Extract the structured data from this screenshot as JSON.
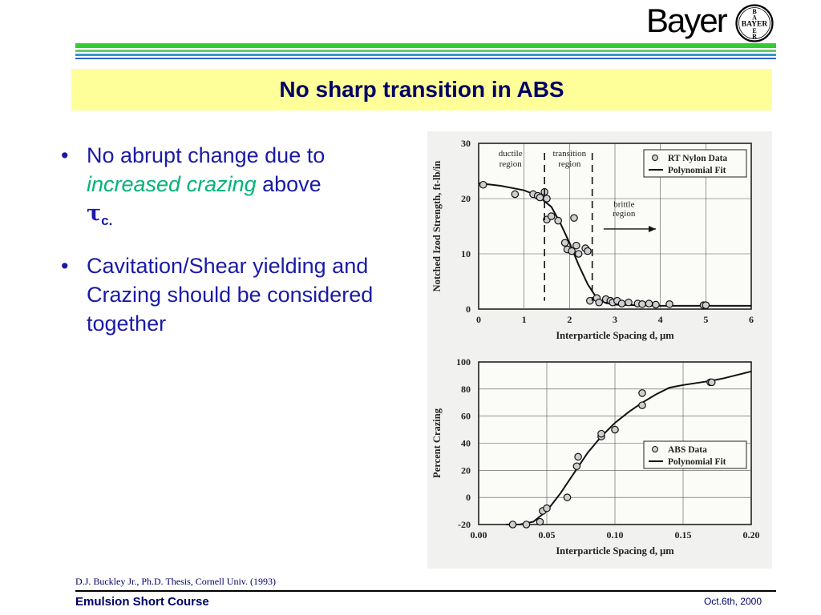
{
  "brand": {
    "name": "Bayer",
    "cross_text_h": "BAYER",
    "cross_text_v": "BAYER"
  },
  "colors": {
    "title_bg": "#ffff99",
    "title_text": "#000066",
    "bullet_text": "#1a1aa6",
    "emphasis": "#00b377",
    "stripe_green": "#33cc33",
    "stripe_blue": "#3366cc"
  },
  "slide": {
    "title": "No sharp transition in ABS",
    "bullets": [
      {
        "pre": "No abrupt change due to ",
        "emph": "increased crazing",
        "post": " above",
        "symbol": "τ",
        "symbol_sub": "c",
        "end": "."
      },
      {
        "text": "Cavitation/Shear yielding and Crazing should be considered together"
      }
    ]
  },
  "chart_data": [
    {
      "type": "scatter",
      "ylabel": "Notched Izod Strength, ft-lb/in",
      "xlabel": "Interparticle Spacing d, μm",
      "xlim": [
        0,
        6
      ],
      "ylim": [
        0,
        30
      ],
      "xticks": [
        "0",
        "1",
        "2",
        "3",
        "4",
        "5",
        "6"
      ],
      "yticks": [
        "0",
        "10",
        "20",
        "30"
      ],
      "grid": true,
      "legend": {
        "position": "top-right",
        "entries": [
          "RT Nylon Data",
          "Polynomial Fit"
        ]
      },
      "annotations": {
        "ductile": "ductile region",
        "transition": "transition region",
        "brittle": "brittle region"
      },
      "series": [
        {
          "name": "RT Nylon Data",
          "points": [
            [
              0.1,
              22.5
            ],
            [
              0.8,
              20.8
            ],
            [
              1.2,
              20.8
            ],
            [
              1.3,
              20.5
            ],
            [
              1.35,
              20.2
            ],
            [
              1.45,
              21.2
            ],
            [
              1.5,
              20.0
            ],
            [
              1.5,
              16.2
            ],
            [
              1.6,
              16.8
            ],
            [
              1.75,
              16.0
            ],
            [
              2.1,
              16.5
            ],
            [
              1.9,
              12.0
            ],
            [
              1.95,
              10.8
            ],
            [
              2.05,
              10.5
            ],
            [
              2.15,
              11.5
            ],
            [
              2.2,
              10.0
            ],
            [
              2.35,
              11.0
            ],
            [
              2.4,
              10.5
            ],
            [
              2.45,
              1.5
            ],
            [
              2.6,
              2.0
            ],
            [
              2.65,
              1.2
            ],
            [
              2.8,
              1.8
            ],
            [
              2.9,
              1.5
            ],
            [
              2.95,
              1.2
            ],
            [
              3.05,
              1.5
            ],
            [
              3.15,
              1.0
            ],
            [
              3.3,
              1.2
            ],
            [
              3.5,
              1.0
            ],
            [
              3.6,
              0.9
            ],
            [
              3.75,
              1.0
            ],
            [
              3.9,
              0.8
            ],
            [
              4.2,
              0.9
            ],
            [
              4.95,
              0.7
            ],
            [
              5.0,
              0.7
            ]
          ]
        },
        {
          "name": "Polynomial Fit",
          "points": [
            [
              0,
              22.8
            ],
            [
              0.5,
              22.3
            ],
            [
              1.0,
              21.5
            ],
            [
              1.3,
              20.5
            ],
            [
              1.6,
              18.5
            ],
            [
              1.8,
              15.5
            ],
            [
              2.0,
              12.0
            ],
            [
              2.2,
              8.0
            ],
            [
              2.4,
              4.5
            ],
            [
              2.6,
              2.0
            ],
            [
              2.8,
              1.1
            ],
            [
              3.0,
              0.8
            ],
            [
              4.0,
              0.6
            ],
            [
              5.0,
              0.6
            ],
            [
              6.0,
              0.6
            ]
          ]
        }
      ]
    },
    {
      "type": "scatter",
      "ylabel": "Percent Crazing",
      "xlabel": "Interparticle Spacing d, μm",
      "xlim": [
        0.0,
        0.2
      ],
      "ylim": [
        -20,
        100
      ],
      "xticks": [
        "0.00",
        "0.05",
        "0.10",
        "0.15",
        "0.20"
      ],
      "yticks": [
        "-20",
        "0",
        "20",
        "40",
        "60",
        "80",
        "100"
      ],
      "grid": true,
      "legend": {
        "position": "bottom-right",
        "entries": [
          "ABS Data",
          "Polynomial Fit"
        ]
      },
      "series": [
        {
          "name": "ABS Data",
          "points": [
            [
              0.025,
              -20
            ],
            [
              0.035,
              -20
            ],
            [
              0.045,
              -18
            ],
            [
              0.047,
              -10
            ],
            [
              0.05,
              -8
            ],
            [
              0.065,
              0
            ],
            [
              0.072,
              23
            ],
            [
              0.073,
              30
            ],
            [
              0.09,
              45
            ],
            [
              0.09,
              47
            ],
            [
              0.1,
              50
            ],
            [
              0.12,
              68
            ],
            [
              0.12,
              77
            ],
            [
              0.17,
              85
            ],
            [
              0.171,
              85
            ]
          ]
        },
        {
          "name": "Polynomial Fit",
          "points": [
            [
              0.02,
              -20
            ],
            [
              0.03,
              -20
            ],
            [
              0.04,
              -18
            ],
            [
              0.05,
              -10
            ],
            [
              0.06,
              3
            ],
            [
              0.07,
              18
            ],
            [
              0.08,
              33
            ],
            [
              0.09,
              45
            ],
            [
              0.1,
              55
            ],
            [
              0.11,
              63
            ],
            [
              0.12,
              70
            ],
            [
              0.13,
              76
            ],
            [
              0.14,
              81
            ],
            [
              0.15,
              83
            ],
            [
              0.17,
              86
            ],
            [
              0.18,
              88
            ],
            [
              0.2,
              93
            ]
          ]
        }
      ]
    }
  ],
  "citation": "D.J. Buckley Jr., Ph.D. Thesis, Cornell Univ. (1993)",
  "footer": {
    "left": "Emulsion Short Course",
    "right": "Oct.6th, 2000"
  }
}
